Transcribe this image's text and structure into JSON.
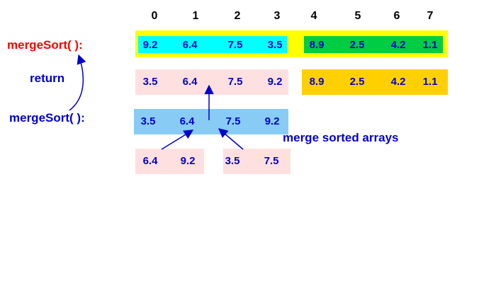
{
  "indices": [
    "0",
    "1",
    "2",
    "3",
    "4",
    "5",
    "6",
    "7"
  ],
  "labels": {
    "merge_sort_top": "mergeSort( ):",
    "return": "return",
    "merge_sort_bottom": "mergeSort( ):",
    "merge_sorted": "merge sorted arrays"
  },
  "rows": {
    "original_left": [
      "9.2",
      "6.4",
      "7.5",
      "3.5"
    ],
    "original_right": [
      "8.9",
      "2.5",
      "4.2",
      "1.1"
    ],
    "returned_left": [
      "3.5",
      "6.4",
      "7.5",
      "9.2"
    ],
    "returned_right": [
      "8.9",
      "2.5",
      "4.2",
      "1.1"
    ],
    "merged": [
      "3.5",
      "6.4",
      "7.5",
      "9.2"
    ],
    "half_a": [
      "6.4",
      "9.2"
    ],
    "half_b": [
      "3.5",
      "7.5"
    ]
  },
  "colors": {
    "outer_frame": "#ffff00",
    "cyan_block": "#00ffff",
    "green_block": "#00cc44",
    "pink_block": "#ffe0e0",
    "gold_block": "#ffd000",
    "blue_block": "#88ccf5",
    "red_text": "#ff0000",
    "blue_text": "#0000cc"
  }
}
